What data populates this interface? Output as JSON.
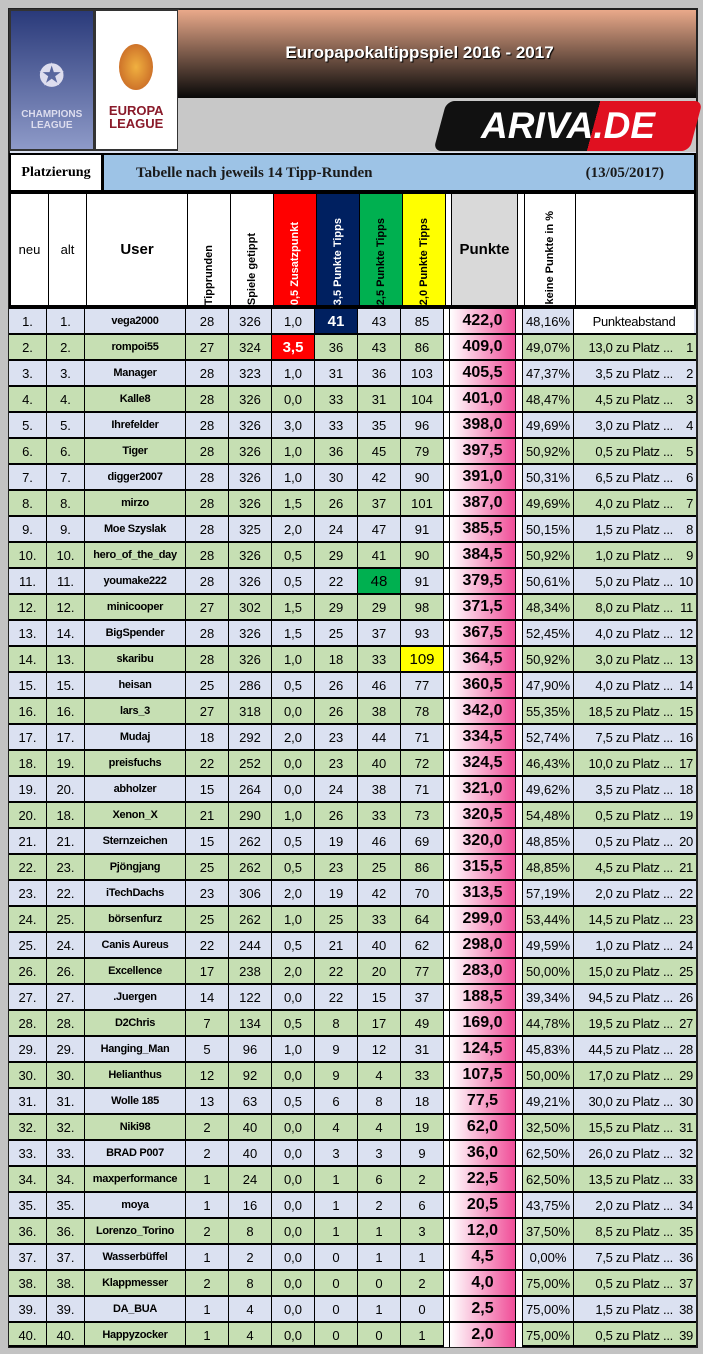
{
  "header": {
    "title": "Europapokaltippspiel 2016 - 2017",
    "logo_cl": "CHAMPIONS LEAGUE",
    "logo_el": "EUROPA LEAGUE",
    "ariva": "ARIVA.DE"
  },
  "subheader": {
    "platzierung": "Platzierung",
    "table_title": "Tabelle nach jeweils 14 Tipp-Runden",
    "date": "(13/05/2017)"
  },
  "columns": {
    "neu": "neu",
    "alt": "alt",
    "user": "User",
    "tipprunden": "Tipprunden",
    "spiele": "Spiele getippt",
    "z05": "0,5 Zusatzpunkt",
    "p35": "3,5 Punkte Tipps",
    "p25": "2,5 Punkte Tipps",
    "p20": "2,0 Punkte Tipps",
    "punkte": "Punkte",
    "keine": "keine Punkte in %"
  },
  "colors": {
    "z05": "#ff0000",
    "p35": "#002060",
    "p25": "#00b050",
    "p20": "#ffff00",
    "row_odd": "#dbe1f1",
    "row_even": "#c6dfb3"
  },
  "abstand_label": "Punkteabstand",
  "rows": [
    [
      "1.",
      "1.",
      "vega2000",
      "28",
      "326",
      "1,0",
      "41",
      "43",
      "85",
      "422,0",
      "48,16%",
      "",
      ""
    ],
    [
      "2.",
      "2.",
      "rompoi55",
      "27",
      "324",
      "3,5",
      "36",
      "43",
      "86",
      "409,0",
      "49,07%",
      "13,0 zu Platz ...",
      "1"
    ],
    [
      "3.",
      "3.",
      "Manager",
      "28",
      "323",
      "1,0",
      "31",
      "36",
      "103",
      "405,5",
      "47,37%",
      "3,5 zu Platz ...",
      "2"
    ],
    [
      "4.",
      "4.",
      "Kalle8",
      "28",
      "326",
      "0,0",
      "33",
      "31",
      "104",
      "401,0",
      "48,47%",
      "4,5 zu Platz ...",
      "3"
    ],
    [
      "5.",
      "5.",
      "Ihrefelder",
      "28",
      "326",
      "3,0",
      "33",
      "35",
      "96",
      "398,0",
      "49,69%",
      "3,0 zu Platz ...",
      "4"
    ],
    [
      "6.",
      "6.",
      "Tiger",
      "28",
      "326",
      "1,0",
      "36",
      "45",
      "79",
      "397,5",
      "50,92%",
      "0,5 zu Platz ...",
      "5"
    ],
    [
      "7.",
      "7.",
      "digger2007",
      "28",
      "326",
      "1,0",
      "30",
      "42",
      "90",
      "391,0",
      "50,31%",
      "6,5 zu Platz ...",
      "6"
    ],
    [
      "8.",
      "8.",
      "mirzo",
      "28",
      "326",
      "1,5",
      "26",
      "37",
      "101",
      "387,0",
      "49,69%",
      "4,0 zu Platz ...",
      "7"
    ],
    [
      "9.",
      "9.",
      "Moe Szyslak",
      "28",
      "325",
      "2,0",
      "24",
      "47",
      "91",
      "385,5",
      "50,15%",
      "1,5 zu Platz ...",
      "8"
    ],
    [
      "10.",
      "10.",
      "hero_of_the_day",
      "28",
      "326",
      "0,5",
      "29",
      "41",
      "90",
      "384,5",
      "50,92%",
      "1,0 zu Platz ...",
      "9"
    ],
    [
      "11.",
      "11.",
      "youmake222",
      "28",
      "326",
      "0,5",
      "22",
      "48",
      "91",
      "379,5",
      "50,61%",
      "5,0 zu Platz ...",
      "10"
    ],
    [
      "12.",
      "12.",
      "minicooper",
      "27",
      "302",
      "1,5",
      "29",
      "29",
      "98",
      "371,5",
      "48,34%",
      "8,0 zu Platz ...",
      "11"
    ],
    [
      "13.",
      "14.",
      "BigSpender",
      "28",
      "326",
      "1,5",
      "25",
      "37",
      "93",
      "367,5",
      "52,45%",
      "4,0 zu Platz ...",
      "12"
    ],
    [
      "14.",
      "13.",
      "skaribu",
      "28",
      "326",
      "1,0",
      "18",
      "33",
      "109",
      "364,5",
      "50,92%",
      "3,0 zu Platz ...",
      "13"
    ],
    [
      "15.",
      "15.",
      "heisan",
      "25",
      "286",
      "0,5",
      "26",
      "46",
      "77",
      "360,5",
      "47,90%",
      "4,0 zu Platz ...",
      "14"
    ],
    [
      "16.",
      "16.",
      "lars_3",
      "27",
      "318",
      "0,0",
      "26",
      "38",
      "78",
      "342,0",
      "55,35%",
      "18,5 zu Platz ...",
      "15"
    ],
    [
      "17.",
      "17.",
      "Mudaj",
      "18",
      "292",
      "2,0",
      "23",
      "44",
      "71",
      "334,5",
      "52,74%",
      "7,5 zu Platz ...",
      "16"
    ],
    [
      "18.",
      "19.",
      "preisfuchs",
      "22",
      "252",
      "0,0",
      "23",
      "40",
      "72",
      "324,5",
      "46,43%",
      "10,0 zu Platz ...",
      "17"
    ],
    [
      "19.",
      "20.",
      "abholzer",
      "15",
      "264",
      "0,0",
      "24",
      "38",
      "71",
      "321,0",
      "49,62%",
      "3,5 zu Platz ...",
      "18"
    ],
    [
      "20.",
      "18.",
      "Xenon_X",
      "21",
      "290",
      "1,0",
      "26",
      "33",
      "73",
      "320,5",
      "54,48%",
      "0,5 zu Platz ...",
      "19"
    ],
    [
      "21.",
      "21.",
      "Sternzeichen",
      "15",
      "262",
      "0,5",
      "19",
      "46",
      "69",
      "320,0",
      "48,85%",
      "0,5 zu Platz ...",
      "20"
    ],
    [
      "22.",
      "23.",
      "Pjöngjang",
      "25",
      "262",
      "0,5",
      "23",
      "25",
      "86",
      "315,5",
      "48,85%",
      "4,5 zu Platz ...",
      "21"
    ],
    [
      "23.",
      "22.",
      "iTechDachs",
      "23",
      "306",
      "2,0",
      "19",
      "42",
      "70",
      "313,5",
      "57,19%",
      "2,0 zu Platz ...",
      "22"
    ],
    [
      "24.",
      "25.",
      "börsenfurz",
      "25",
      "262",
      "1,0",
      "25",
      "33",
      "64",
      "299,0",
      "53,44%",
      "14,5 zu Platz ...",
      "23"
    ],
    [
      "25.",
      "24.",
      "Canis Aureus",
      "22",
      "244",
      "0,5",
      "21",
      "40",
      "62",
      "298,0",
      "49,59%",
      "1,0 zu Platz ...",
      "24"
    ],
    [
      "26.",
      "26.",
      "Excellence",
      "17",
      "238",
      "2,0",
      "22",
      "20",
      "77",
      "283,0",
      "50,00%",
      "15,0 zu Platz ...",
      "25"
    ],
    [
      "27.",
      "27.",
      ".Juergen",
      "14",
      "122",
      "0,0",
      "22",
      "15",
      "37",
      "188,5",
      "39,34%",
      "94,5 zu Platz ...",
      "26"
    ],
    [
      "28.",
      "28.",
      "D2Chris",
      "7",
      "134",
      "0,5",
      "8",
      "17",
      "49",
      "169,0",
      "44,78%",
      "19,5 zu Platz ...",
      "27"
    ],
    [
      "29.",
      "29.",
      "Hanging_Man",
      "5",
      "96",
      "1,0",
      "9",
      "12",
      "31",
      "124,5",
      "45,83%",
      "44,5 zu Platz ...",
      "28"
    ],
    [
      "30.",
      "30.",
      "Helianthus",
      "12",
      "92",
      "0,0",
      "9",
      "4",
      "33",
      "107,5",
      "50,00%",
      "17,0 zu Platz ...",
      "29"
    ],
    [
      "31.",
      "31.",
      "Wolle 185",
      "13",
      "63",
      "0,5",
      "6",
      "8",
      "18",
      "77,5",
      "49,21%",
      "30,0 zu Platz ...",
      "30"
    ],
    [
      "32.",
      "32.",
      "Niki98",
      "2",
      "40",
      "0,0",
      "4",
      "4",
      "19",
      "62,0",
      "32,50%",
      "15,5 zu Platz ...",
      "31"
    ],
    [
      "33.",
      "33.",
      "BRAD P007",
      "2",
      "40",
      "0,0",
      "3",
      "3",
      "9",
      "36,0",
      "62,50%",
      "26,0 zu Platz ...",
      "32"
    ],
    [
      "34.",
      "34.",
      "maxperformance",
      "1",
      "24",
      "0,0",
      "1",
      "6",
      "2",
      "22,5",
      "62,50%",
      "13,5 zu Platz ...",
      "33"
    ],
    [
      "35.",
      "35.",
      "moya",
      "1",
      "16",
      "0,0",
      "1",
      "2",
      "6",
      "20,5",
      "43,75%",
      "2,0 zu Platz ...",
      "34"
    ],
    [
      "36.",
      "36.",
      "Lorenzo_Torino",
      "2",
      "8",
      "0,0",
      "1",
      "1",
      "3",
      "12,0",
      "37,50%",
      "8,5 zu Platz ...",
      "35"
    ],
    [
      "37.",
      "37.",
      "Wasserbüffel",
      "1",
      "2",
      "0,0",
      "0",
      "1",
      "1",
      "4,5",
      "0,00%",
      "7,5 zu Platz ...",
      "36"
    ],
    [
      "38.",
      "38.",
      "Klappmesser",
      "2",
      "8",
      "0,0",
      "0",
      "0",
      "2",
      "4,0",
      "75,00%",
      "0,5 zu Platz ...",
      "37"
    ],
    [
      "39.",
      "39.",
      "DA_BUA",
      "1",
      "4",
      "0,0",
      "0",
      "1",
      "0",
      "2,5",
      "75,00%",
      "1,5 zu Platz ...",
      "38"
    ],
    [
      "40.",
      "40.",
      "Happyzocker",
      "1",
      "4",
      "0,0",
      "0",
      "0",
      "1",
      "2,0",
      "75,00%",
      "0,5 zu Platz ...",
      "39"
    ]
  ],
  "highlights": [
    {
      "row": 1,
      "col": "p35",
      "style": "navy"
    },
    {
      "row": 2,
      "col": "z05",
      "style": "red"
    },
    {
      "row": 11,
      "col": "p25",
      "style": "green"
    },
    {
      "row": 14,
      "col": "p20",
      "style": "yellow"
    }
  ]
}
